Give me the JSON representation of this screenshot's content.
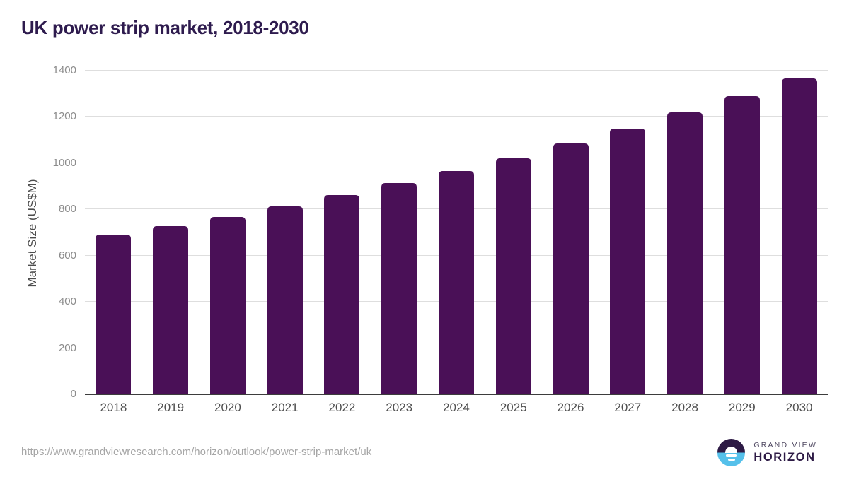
{
  "title": "UK power strip market, 2018-2030",
  "footer": {
    "source_url": "https://www.grandviewresearch.com/horizon/outlook/power-strip-market/uk",
    "logo": {
      "line1": "GRAND VIEW",
      "line2": "HORIZON"
    }
  },
  "colors": {
    "bar": "#4a1057",
    "title": "#2e1b4e",
    "gridline": "#dedede",
    "axis_line": "#3d3d3d",
    "y_tick_label": "#8c8c8c",
    "x_tick_label": "#4f4f4f",
    "url_text": "#a6a6a6",
    "logo_purple": "#2d1a45",
    "logo_blue": "#55c0ea"
  },
  "chart_data": {
    "type": "bar",
    "title": "UK power strip market, 2018-2030",
    "categories": [
      "2018",
      "2019",
      "2020",
      "2021",
      "2022",
      "2023",
      "2024",
      "2025",
      "2026",
      "2027",
      "2028",
      "2029",
      "2030"
    ],
    "values": [
      690,
      727,
      768,
      814,
      863,
      913,
      965,
      1022,
      1084,
      1150,
      1221,
      1291,
      1365
    ],
    "xlabel": "",
    "ylabel": "Market Size (US$M)",
    "ylim": [
      0,
      1400
    ],
    "yticks": [
      0,
      200,
      400,
      600,
      800,
      1000,
      1200,
      1400
    ],
    "grid": "horizontal",
    "legend": "none",
    "bar_color": "#4a1057"
  }
}
